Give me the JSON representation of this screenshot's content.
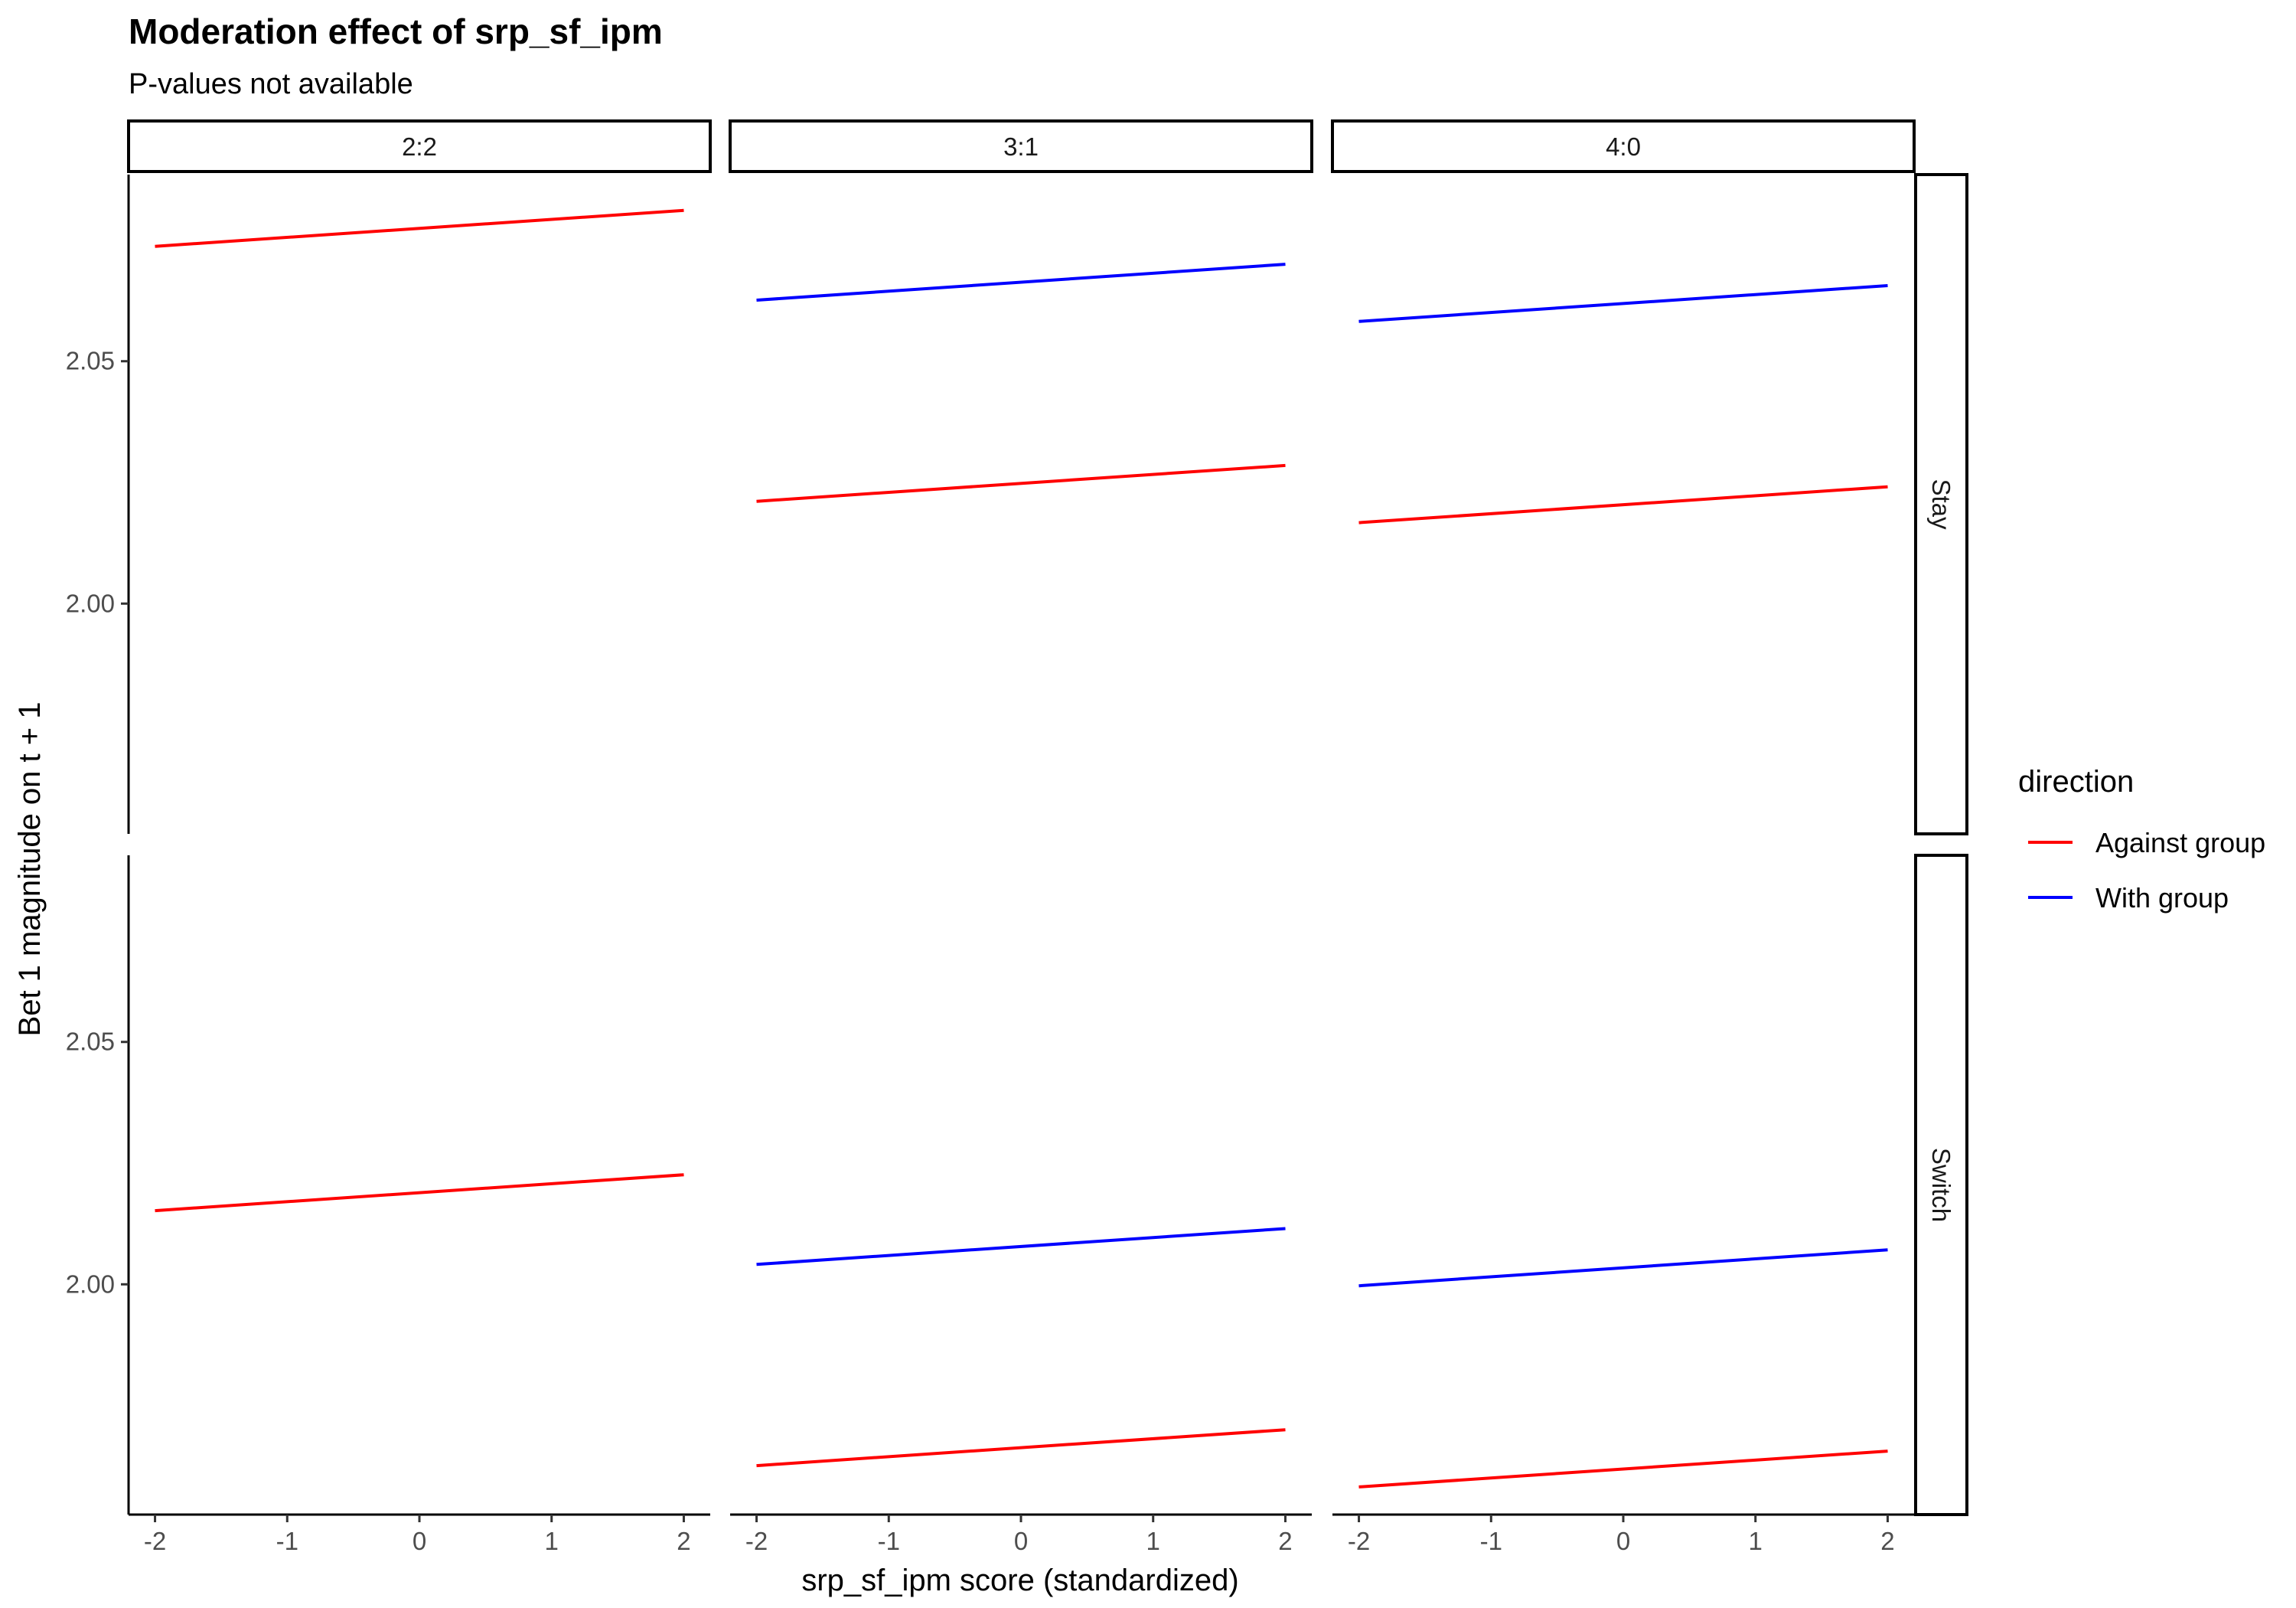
{
  "chart_data": {
    "type": "line",
    "title": "Moderation effect of srp_sf_ipm",
    "subtitle": "P-values not available",
    "xlabel": "srp_sf_ipm score (standardized)",
    "ylabel": "Bet 1 magnitude on t + 1",
    "x_ticks": [
      -2,
      -1,
      0,
      1,
      2
    ],
    "y_ticks": [
      2.0,
      2.05
    ],
    "y_tick_labels": [
      "2.00",
      "2.05"
    ],
    "xlim": [
      -2.2,
      2.2
    ],
    "ylim": [
      1.9525,
      2.0885
    ],
    "facet_cols": [
      "2:2",
      "3:1",
      "4:0"
    ],
    "facet_rows": [
      "Stay",
      "Switch"
    ],
    "legend": {
      "title": "direction",
      "position": "right",
      "entries": [
        {
          "name": "Against group",
          "color": "#ff0000"
        },
        {
          "name": "With group",
          "color": "#0000ff"
        }
      ]
    },
    "grid": false,
    "panels": [
      {
        "row": "Stay",
        "col": "2:2",
        "series": [
          {
            "name": "Against group",
            "x": [
              -2,
              2
            ],
            "y": [
              2.0737,
              2.0811
            ]
          }
        ]
      },
      {
        "row": "Stay",
        "col": "3:1",
        "series": [
          {
            "name": "Against group",
            "x": [
              -2,
              2
            ],
            "y": [
              2.0211,
              2.0285
            ]
          },
          {
            "name": "With group",
            "x": [
              -2,
              2
            ],
            "y": [
              2.0626,
              2.07
            ]
          }
        ]
      },
      {
        "row": "Stay",
        "col": "4:0",
        "series": [
          {
            "name": "Against group",
            "x": [
              -2,
              2
            ],
            "y": [
              2.0167,
              2.0241
            ]
          },
          {
            "name": "With group",
            "x": [
              -2,
              2
            ],
            "y": [
              2.0582,
              2.0656
            ]
          }
        ]
      },
      {
        "row": "Switch",
        "col": "2:2",
        "series": [
          {
            "name": "Against group",
            "x": [
              -2,
              2
            ],
            "y": [
              2.0152,
              2.0226
            ]
          }
        ]
      },
      {
        "row": "Switch",
        "col": "3:1",
        "series": [
          {
            "name": "Against group",
            "x": [
              -2,
              2
            ],
            "y": [
              1.9626,
              1.97
            ]
          },
          {
            "name": "With group",
            "x": [
              -2,
              2
            ],
            "y": [
              2.0041,
              2.0115
            ]
          }
        ]
      },
      {
        "row": "Switch",
        "col": "4:0",
        "series": [
          {
            "name": "Against group",
            "x": [
              -2,
              2
            ],
            "y": [
              1.9582,
              1.9656
            ]
          },
          {
            "name": "With group",
            "x": [
              -2,
              2
            ],
            "y": [
              1.9997,
              2.0071
            ]
          }
        ]
      }
    ]
  }
}
